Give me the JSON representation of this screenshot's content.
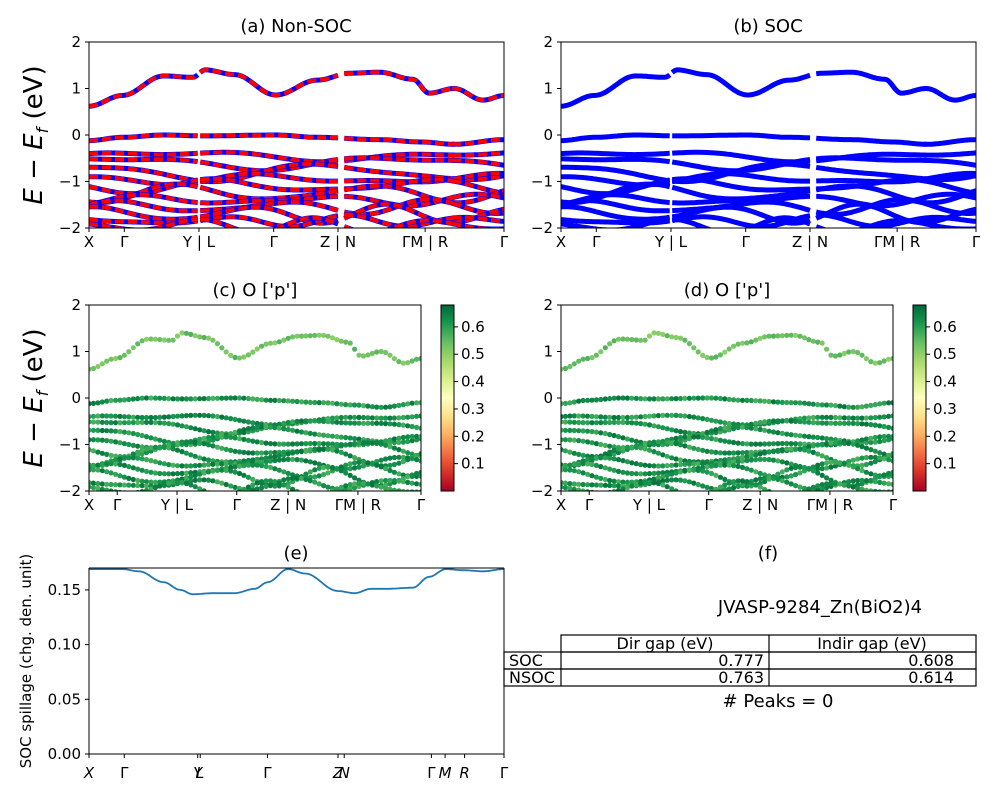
{
  "colors": {
    "nonsoc_a": "#0000ff",
    "nonsoc_b": "#ff0000",
    "soc": "#0000ff",
    "spillage": "#1f77b4",
    "colormap": "RdYlGn"
  },
  "energy_ylabel": "E − E_f (eV)",
  "kpath_labels": [
    "X",
    "Γ",
    "Y | L",
    "Γ",
    "Z | N",
    "ΓM | R",
    "Γ"
  ],
  "kpath_labels_italic": [
    "X",
    "Γ",
    "Y",
    "L",
    "Γ",
    "Z",
    "N",
    "Γ",
    "M",
    "R",
    "Γ"
  ],
  "energy_yticks": [
    "2",
    "1",
    "0",
    "−1",
    "−2"
  ],
  "colorbar_ticks": [
    "0.6",
    "0.5",
    "0.4",
    "0.3",
    "0.2",
    "0.1"
  ],
  "chart_data": [
    {
      "id": "a",
      "type": "line",
      "title": "(a) Non-SOC",
      "ylabel": "E − E_f (eV)",
      "ylim": [
        -2,
        2
      ],
      "x_ticks": [
        "X",
        "Γ",
        "Y | L",
        "Γ",
        "Z | N",
        "ΓM | R",
        "Γ"
      ],
      "series": [
        {
          "band": "conduction",
          "x": [
            0,
            0.08,
            0.18,
            0.25,
            0.28,
            0.35,
            0.45,
            0.55,
            0.63,
            0.7,
            0.78,
            0.82,
            0.88,
            0.95,
            1.0
          ],
          "y": [
            0.62,
            0.85,
            1.27,
            1.24,
            1.4,
            1.3,
            0.86,
            1.18,
            1.33,
            1.35,
            1.2,
            0.9,
            1.0,
            0.75,
            0.85
          ]
        },
        {
          "band": "valence_top",
          "x": [
            0,
            0.08,
            0.18,
            0.28,
            0.45,
            0.55,
            0.7,
            0.8,
            0.88,
            1.0
          ],
          "y": [
            -0.12,
            -0.05,
            0.0,
            -0.02,
            0.0,
            -0.05,
            -0.1,
            -0.15,
            -0.2,
            -0.1
          ]
        }
      ]
    },
    {
      "id": "b",
      "type": "line",
      "title": "(b) SOC",
      "ylabel": "",
      "ylim": [
        -2,
        2
      ],
      "x_ticks": [
        "X",
        "Γ",
        "Y | L",
        "Γ",
        "Z | N",
        "ΓM | R",
        "Γ"
      ],
      "series": [
        {
          "band": "conduction",
          "x": [
            0,
            0.08,
            0.18,
            0.25,
            0.28,
            0.35,
            0.45,
            0.55,
            0.63,
            0.7,
            0.78,
            0.82,
            0.88,
            0.95,
            1.0
          ],
          "y": [
            0.62,
            0.85,
            1.27,
            1.24,
            1.4,
            1.3,
            0.86,
            1.18,
            1.33,
            1.35,
            1.2,
            0.9,
            1.0,
            0.75,
            0.85
          ]
        },
        {
          "band": "valence_top",
          "x": [
            0,
            0.08,
            0.18,
            0.28,
            0.45,
            0.55,
            0.7,
            0.8,
            0.88,
            1.0
          ],
          "y": [
            -0.12,
            -0.05,
            0.0,
            -0.02,
            0.0,
            -0.05,
            -0.1,
            -0.15,
            -0.2,
            -0.1
          ]
        }
      ]
    },
    {
      "id": "c",
      "type": "scatter",
      "title": "(c)  O ['p']",
      "ylabel": "E − E_f (eV)",
      "ylim": [
        -2,
        2
      ],
      "x_ticks": [
        "X",
        "Γ",
        "Y | L",
        "Γ",
        "Z | N",
        "ΓM | R",
        "Γ"
      ],
      "colorbar": {
        "range": [
          0.0,
          0.68
        ],
        "ticks": [
          0.1,
          0.2,
          0.3,
          0.4,
          0.5,
          0.6
        ]
      }
    },
    {
      "id": "d",
      "type": "scatter",
      "title": "(d) O ['p']",
      "ylabel": "",
      "ylim": [
        -2,
        2
      ],
      "x_ticks": [
        "X",
        "Γ",
        "Y | L",
        "Γ",
        "Z | N",
        "ΓM | R",
        "Γ"
      ],
      "colorbar": {
        "range": [
          0.0,
          0.68
        ],
        "ticks": [
          0.1,
          0.2,
          0.3,
          0.4,
          0.5,
          0.6
        ]
      }
    },
    {
      "id": "e",
      "type": "line",
      "title": "(e)",
      "ylabel": "SOC spillage (chg. den. unit)",
      "ylim": [
        0,
        0.17
      ],
      "yticks": [
        "0.00",
        "0.05",
        "0.10",
        "0.15"
      ],
      "x_ticks": [
        "X",
        "Γ",
        "Y",
        "L",
        "Γ",
        "Z",
        "N",
        "Γ",
        "M",
        "R",
        "Γ"
      ],
      "series": [
        {
          "name": "",
          "x": [
            0,
            0.04,
            0.08,
            0.12,
            0.18,
            0.22,
            0.25,
            0.3,
            0.35,
            0.4,
            0.43,
            0.48,
            0.52,
            0.6,
            0.64,
            0.68,
            0.72,
            0.78,
            0.82,
            0.86,
            0.9,
            0.95,
            1.0
          ],
          "y": [
            0.169,
            0.169,
            0.169,
            0.167,
            0.157,
            0.15,
            0.146,
            0.147,
            0.147,
            0.151,
            0.157,
            0.169,
            0.165,
            0.149,
            0.147,
            0.151,
            0.151,
            0.152,
            0.162,
            0.169,
            0.168,
            0.167,
            0.169
          ]
        }
      ]
    }
  ],
  "panel_f": {
    "title": "(f)",
    "material": "JVASP-9284_Zn(BiO2)4",
    "table": {
      "headers": [
        "Dir gap (eV)",
        "Indir gap (eV)"
      ],
      "rows": [
        {
          "label": "SOC",
          "dir": "0.777",
          "indir": "0.608"
        },
        {
          "label": "NSOC",
          "dir": "0.763",
          "indir": "0.614"
        }
      ]
    },
    "peaks": "# Peaks = 0"
  }
}
